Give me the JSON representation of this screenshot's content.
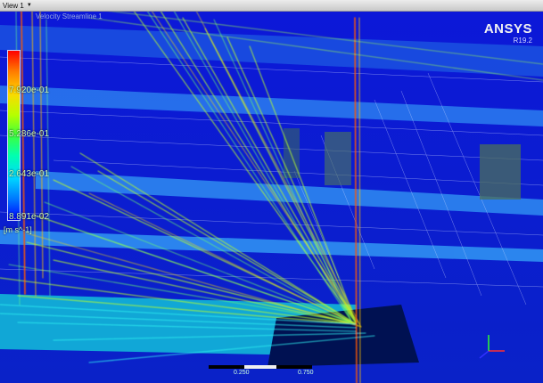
{
  "view": {
    "title": "View 1"
  },
  "brand": {
    "name": "ANSYS",
    "version": "R19.2"
  },
  "legend": {
    "title": "Velocity Streamline 1",
    "max_label": "",
    "labels": [
      "7.920e-01",
      "5.286e-01",
      "2.643e-01",
      "8.891e-02"
    ],
    "unit": "[m s^-1]"
  },
  "scale": {
    "left": "",
    "mid": "0.250",
    "right": "0.750"
  },
  "colors": {
    "background": "#0a1ed6",
    "streamline_low": "#00e0ff",
    "streamline_mid": "#b8ff2a",
    "streamline_high": "#ff5a00"
  }
}
